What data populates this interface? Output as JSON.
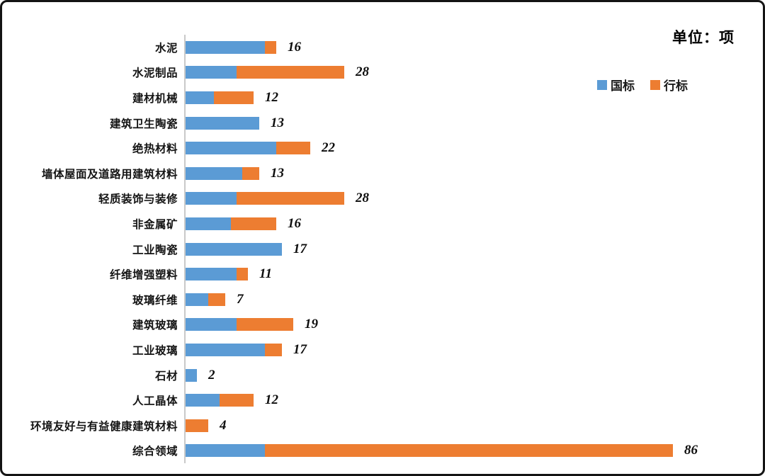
{
  "unit_title": "单位：项",
  "chart_data": {
    "type": "bar",
    "orientation": "horizontal",
    "stacked": true,
    "title": "单位：项",
    "xlabel": "",
    "ylabel": "",
    "xlim": [
      0,
      90
    ],
    "grid": false,
    "legend_position": "top-right",
    "axis_line_color": "#c9c9c9",
    "categories": [
      "水泥",
      "水泥制品",
      "建材机械",
      "建筑卫生陶瓷",
      "绝热材料",
      "墙体屋面及道路用建筑材料",
      "轻质装饰与装修",
      "非金属矿",
      "工业陶瓷",
      "纤维增强塑料",
      "玻璃纤维",
      "建筑玻璃",
      "工业玻璃",
      "石材",
      "人工晶体",
      "环境友好与有益健康建筑材料",
      "综合领域"
    ],
    "series": [
      {
        "name": "国标",
        "color": "#5b9bd5",
        "values": [
          14,
          9,
          5,
          13,
          16,
          10,
          9,
          8,
          17,
          9,
          4,
          9,
          14,
          2,
          6,
          0,
          14
        ]
      },
      {
        "name": "行标",
        "color": "#ed7d31",
        "values": [
          2,
          19,
          7,
          0,
          6,
          3,
          19,
          8,
          0,
          2,
          3,
          10,
          3,
          0,
          6,
          4,
          72
        ]
      }
    ],
    "totals": [
      16,
      28,
      12,
      13,
      22,
      13,
      28,
      16,
      17,
      11,
      7,
      19,
      17,
      2,
      12,
      4,
      86
    ]
  }
}
